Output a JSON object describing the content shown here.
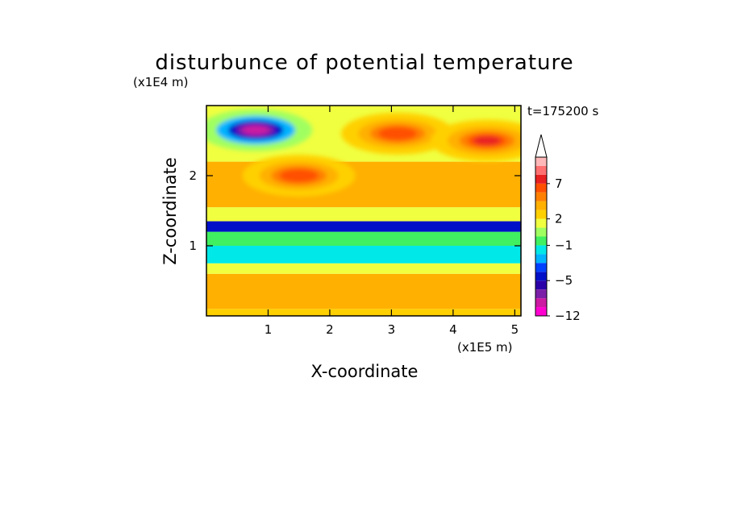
{
  "chart_data": {
    "type": "heatmap",
    "title": "disturbunce of potential temperature",
    "xlabel": "X-coordinate",
    "ylabel": "Z-coordinate",
    "x_unit": "(x1E5 m)",
    "y_unit": "(x1E4 m)",
    "time_label": "t=175200 s",
    "x_ticks": [
      "1",
      "2",
      "3",
      "4",
      "5"
    ],
    "y_ticks": [
      "1",
      "2"
    ],
    "xlim": [
      0,
      5.1
    ],
    "ylim": [
      0,
      3.0
    ],
    "colorbar_labels": [
      "7",
      "2",
      "−1",
      "−5",
      "−12"
    ],
    "colorbar_label_values": [
      7,
      2,
      -1,
      -5,
      -12
    ],
    "colorbar_levels": [
      -12,
      -10,
      -8,
      -6,
      -5,
      -4,
      -3,
      -2,
      -1,
      0,
      1,
      2,
      3,
      4,
      5,
      7,
      9,
      11
    ],
    "colorbar_colors": [
      "#ff00d0",
      "#cc1aa3",
      "#7b1fa8",
      "#2a00a8",
      "#0010c8",
      "#0040ff",
      "#00b4ff",
      "#00e8e8",
      "#40f060",
      "#a0ff60",
      "#f0ff40",
      "#ffd000",
      "#ffb000",
      "#ff8000",
      "#ff5000",
      "#e82020",
      "#ff7070",
      "#ffb8b8"
    ],
    "colorbar_extend": "max",
    "bands": [
      {
        "z_range": [
          0.0,
          0.1
        ],
        "approx_value": 2.5
      },
      {
        "z_range": [
          0.1,
          0.6
        ],
        "approx_value": 3
      },
      {
        "z_range": [
          0.6,
          0.75
        ],
        "approx_value": 1.5
      },
      {
        "z_range": [
          0.75,
          1.0
        ],
        "approx_value": -1.5
      },
      {
        "z_range": [
          1.0,
          1.2
        ],
        "approx_value": -1
      },
      {
        "z_range": [
          1.2,
          1.35
        ],
        "approx_value": -4.5
      },
      {
        "z_range": [
          1.35,
          1.55
        ],
        "approx_value": 1.5
      },
      {
        "z_range": [
          1.55,
          2.2
        ],
        "approx_value": 3
      },
      {
        "z_range": [
          2.2,
          3.0
        ],
        "approx_value": 1
      }
    ],
    "features": [
      {
        "name": "cold anomaly",
        "x": 0.8,
        "z": 2.65,
        "value": -9
      },
      {
        "name": "warm anomaly",
        "x": 3.1,
        "z": 2.6,
        "value": 6
      },
      {
        "name": "warm anomaly",
        "x": 4.55,
        "z": 2.5,
        "value": 7
      },
      {
        "name": "warm anomaly",
        "x": 1.5,
        "z": 2.0,
        "value": 5
      }
    ]
  }
}
